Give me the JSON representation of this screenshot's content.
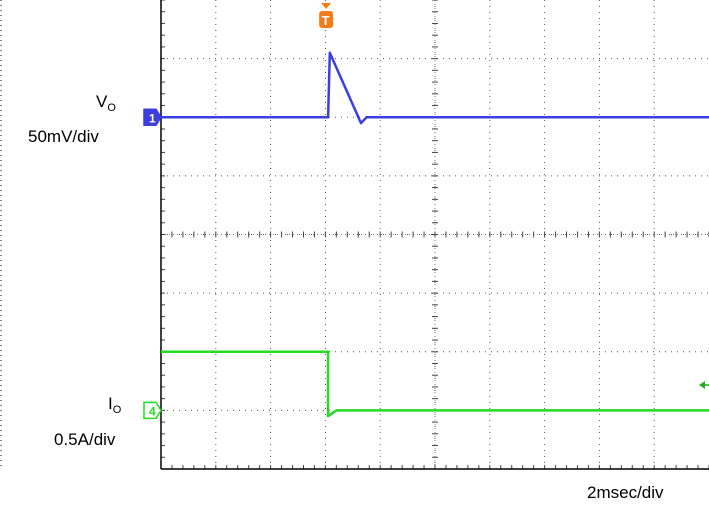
{
  "chart_data": {
    "type": "line",
    "grid": {
      "x_divisions": 10,
      "y_divisions": 8,
      "minor_ticks_per_div": 5,
      "style": "dotted"
    },
    "time_scale": "2msec/div",
    "trigger_marker": "T",
    "channels": [
      {
        "id": "1",
        "name_main": "V",
        "name_sub": "O",
        "scale": "50mV/div",
        "color": "#3a3fe0",
        "baseline_div": 2.0,
        "trace": [
          {
            "t_div": 0.0,
            "v_div": 0.0
          },
          {
            "t_div": 3.05,
            "v_div": 0.0
          },
          {
            "t_div": 3.08,
            "v_div": 1.1
          },
          {
            "t_div": 3.65,
            "v_div": -0.1
          },
          {
            "t_div": 3.75,
            "v_div": 0.0
          },
          {
            "t_div": 10.0,
            "v_div": 0.0
          }
        ]
      },
      {
        "id": "4",
        "name_main": "I",
        "name_sub": "O",
        "scale": "0.5A/div",
        "color": "#22dd22",
        "baseline_div": 7.0,
        "trace": [
          {
            "t_div": 0.0,
            "v_div": 1.0
          },
          {
            "t_div": 3.05,
            "v_div": 1.0
          },
          {
            "t_div": 3.05,
            "v_div": -0.1
          },
          {
            "t_div": 3.2,
            "v_div": 0.0
          },
          {
            "t_div": 10.0,
            "v_div": 0.0
          }
        ]
      }
    ]
  }
}
